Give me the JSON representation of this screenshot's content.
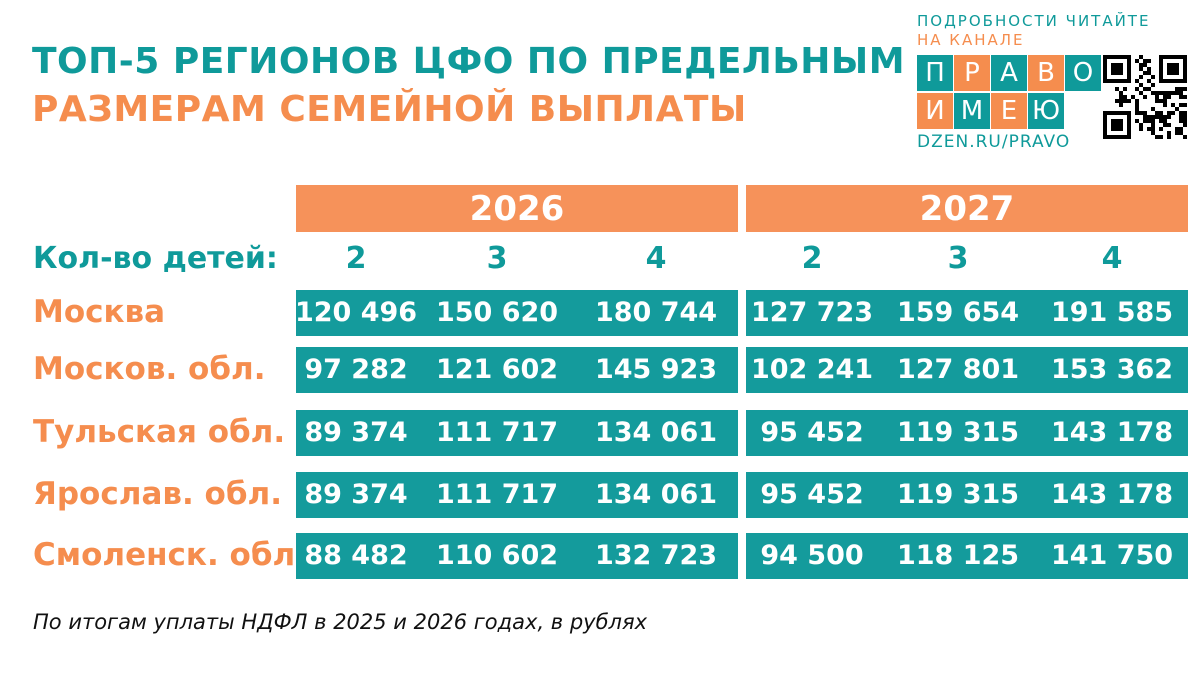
{
  "title": {
    "line1": "ТОП-5 РЕГИОНОВ ЦФО ПО ПРЕДЕЛЬНЫМ",
    "line2": "РАЗМЕРАМ СЕМЕЙНОЙ ВЫПЛАТЫ"
  },
  "brand": {
    "cta_line1": "ПОДРОБНОСТИ ЧИТАЙТЕ",
    "cta_line2": "НА КАНАЛЕ",
    "logo_letters": [
      "П",
      "Р",
      "А",
      "В",
      "О",
      "И",
      "М",
      "Е",
      "Ю"
    ],
    "url": "DZEN.RU/PRAVO",
    "colors": {
      "teal": "#0f9a9a",
      "orange": "#f58d4e"
    }
  },
  "table": {
    "years": [
      "2026",
      "2027"
    ],
    "children_label": "Кол-во детей:",
    "children_counts": [
      "2",
      "3",
      "4",
      "2",
      "3",
      "4"
    ],
    "rows": [
      {
        "region": "Москва",
        "values": [
          "120 496",
          "150 620",
          "180 744",
          "127 723",
          "159 654",
          "191 585"
        ]
      },
      {
        "region": "Москов. обл.",
        "values": [
          "97 282",
          "121 602",
          "145 923",
          "102 241",
          "127 801",
          "153 362"
        ]
      },
      {
        "region": "Тульская обл.",
        "values": [
          "89 374",
          "111 717",
          "134 061",
          "95 452",
          "119 315",
          "143 178"
        ]
      },
      {
        "region": "Ярослав. обл.",
        "values": [
          "89 374",
          "111 717",
          "134 061",
          "95 452",
          "119 315",
          "143 178"
        ]
      },
      {
        "region": "Смоленск. обл.",
        "values": [
          "88 482",
          "110 602",
          "132 723",
          "94 500",
          "118 125",
          "141 750"
        ]
      }
    ],
    "colors": {
      "header": "#f6925a",
      "bar": "#149b9c",
      "region_text": "#f58d4e",
      "label_text": "#0f9a9a"
    }
  },
  "footnote": "По итогам уплаты НДФЛ в 2025 и 2026 годах, в рублях"
}
